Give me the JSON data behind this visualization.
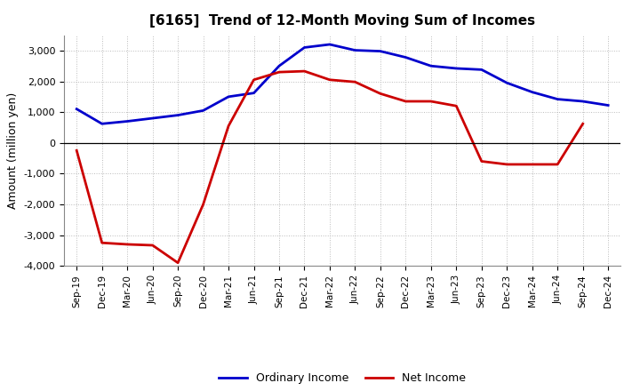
{
  "title": "[6165]  Trend of 12-Month Moving Sum of Incomes",
  "ylabel": "Amount (million yen)",
  "x_labels": [
    "Sep-19",
    "Dec-19",
    "Mar-20",
    "Jun-20",
    "Sep-20",
    "Dec-20",
    "Mar-21",
    "Jun-21",
    "Sep-21",
    "Dec-21",
    "Mar-22",
    "Jun-22",
    "Sep-22",
    "Dec-22",
    "Mar-23",
    "Jun-23",
    "Sep-23",
    "Dec-23",
    "Mar-24",
    "Jun-24",
    "Sep-24",
    "Dec-24"
  ],
  "ordinary_income": [
    1100,
    620,
    700,
    800,
    900,
    1050,
    1500,
    1620,
    2500,
    3100,
    3200,
    3010,
    2980,
    2780,
    2500,
    2420,
    2380,
    1950,
    1650,
    1420,
    1350,
    1220
  ],
  "net_income": [
    -250,
    -3250,
    -3300,
    -3330,
    -3900,
    -2000,
    550,
    2050,
    2300,
    2330,
    2050,
    1980,
    1600,
    1350,
    1350,
    1200,
    -600,
    -700,
    -700,
    -700,
    620,
    null
  ],
  "ordinary_color": "#0000cc",
  "net_color": "#cc0000",
  "ylim": [
    -4000,
    3500
  ],
  "yticks": [
    -4000,
    -3000,
    -2000,
    -1000,
    0,
    1000,
    2000,
    3000
  ],
  "background_color": "#ffffff",
  "grid_color": "#bbbbbb",
  "legend_labels": [
    "Ordinary Income",
    "Net Income"
  ]
}
